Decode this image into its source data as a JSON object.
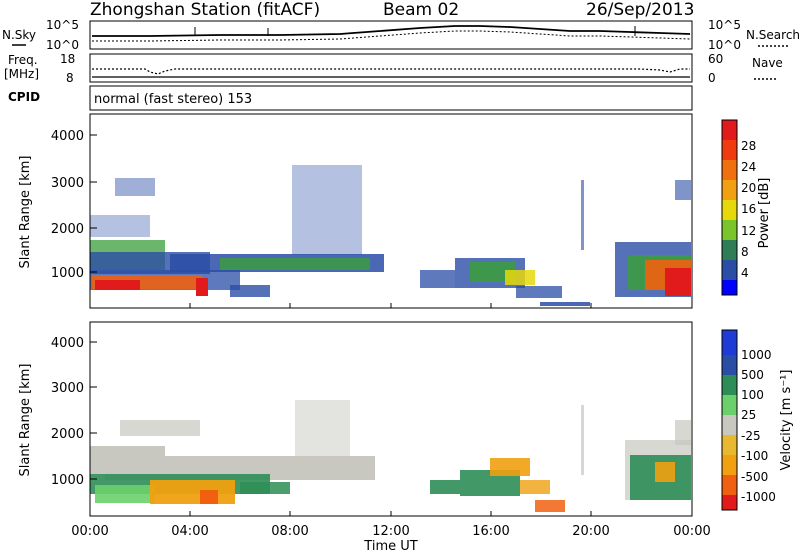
{
  "header": {
    "station": "Zhongshan Station (fitACF)",
    "beam": "Beam 02",
    "date": "26/Sep/2013"
  },
  "summary_panels": {
    "nsky_label": "N.Sky",
    "nsky_ticks": [
      "10^5",
      "10^0"
    ],
    "nsearch_label": "N.Search",
    "nsearch_ticks": [
      "10^5",
      "10^0"
    ],
    "freq_label": "Freq.",
    "freq_unit": "[MHz]",
    "freq_ticks": [
      "18",
      "8"
    ],
    "nave_label": "Nave",
    "nave_ticks": [
      "60",
      "0"
    ],
    "cpid_label": "CPID",
    "cpid_text": "normal (fast stereo) 153"
  },
  "chart_data": [
    {
      "type": "heatmap",
      "name": "power",
      "ylabel": "Slant Range [km]",
      "yticks": [
        "4000",
        "3000",
        "2000",
        "1000"
      ],
      "ylim": [
        180,
        4600
      ],
      "xlim_hours": [
        0,
        24
      ],
      "colorbar_label": "Power [dB]",
      "colorbar_ticks": [
        "28",
        "24",
        "20",
        "16",
        "12",
        "8",
        "4"
      ],
      "colorbar_colors": [
        "#0000ff",
        "#2a4ea6",
        "#2e7d56",
        "#3a9e3a",
        "#7ac52a",
        "#e6d80a",
        "#f0a010",
        "#f06010",
        "#e11b1b"
      ]
    },
    {
      "type": "heatmap",
      "name": "velocity",
      "ylabel": "Slant Range [km]",
      "yticks": [
        "4000",
        "3000",
        "2000",
        "1000"
      ],
      "ylim": [
        180,
        4600
      ],
      "xlim_hours": [
        0,
        24
      ],
      "colorbar_label": "Velocity [m s⁻¹]",
      "colorbar_ticks": [
        "1000",
        "500",
        "100",
        "25",
        "-25",
        "-100",
        "-500",
        "-1000"
      ],
      "colorbar_colors": [
        "#e11b1b",
        "#f06010",
        "#f0a010",
        "#e8b830",
        "#c8c8c0",
        "#c8c8c0",
        "#6bd06b",
        "#2e8d56",
        "#2a4ea6",
        "#1f3bd6"
      ],
      "xlabel": "Time UT",
      "xticks": [
        "00:00",
        "04:00",
        "08:00",
        "12:00",
        "16:00",
        "20:00",
        "00:00"
      ]
    }
  ]
}
